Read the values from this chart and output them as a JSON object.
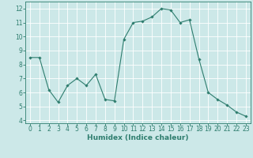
{
  "x": [
    0,
    1,
    2,
    3,
    4,
    5,
    6,
    7,
    8,
    9,
    10,
    11,
    12,
    13,
    14,
    15,
    16,
    17,
    18,
    19,
    20,
    21,
    22,
    23
  ],
  "y": [
    8.5,
    8.5,
    6.2,
    5.3,
    6.5,
    7.0,
    6.5,
    7.3,
    5.5,
    5.4,
    9.8,
    11.0,
    11.1,
    11.4,
    12.0,
    11.9,
    11.0,
    11.2,
    8.4,
    6.0,
    5.5,
    5.1,
    4.6,
    4.3
  ],
  "line_color": "#2e7d6e",
  "marker": "D",
  "marker_size": 1.8,
  "bg_color": "#cce8e8",
  "grid_color": "#ffffff",
  "xlabel": "Humidex (Indice chaleur)",
  "ylim": [
    3.8,
    12.5
  ],
  "xlim": [
    -0.5,
    23.5
  ],
  "xticks": [
    0,
    1,
    2,
    3,
    4,
    5,
    6,
    7,
    8,
    9,
    10,
    11,
    12,
    13,
    14,
    15,
    16,
    17,
    18,
    19,
    20,
    21,
    22,
    23
  ],
  "yticks": [
    4,
    5,
    6,
    7,
    8,
    9,
    10,
    11,
    12
  ],
  "tick_color": "#2e7d6e",
  "label_color": "#2e7d6e",
  "xlabel_fontsize": 6.5,
  "tick_fontsize": 5.5,
  "linewidth": 0.8
}
